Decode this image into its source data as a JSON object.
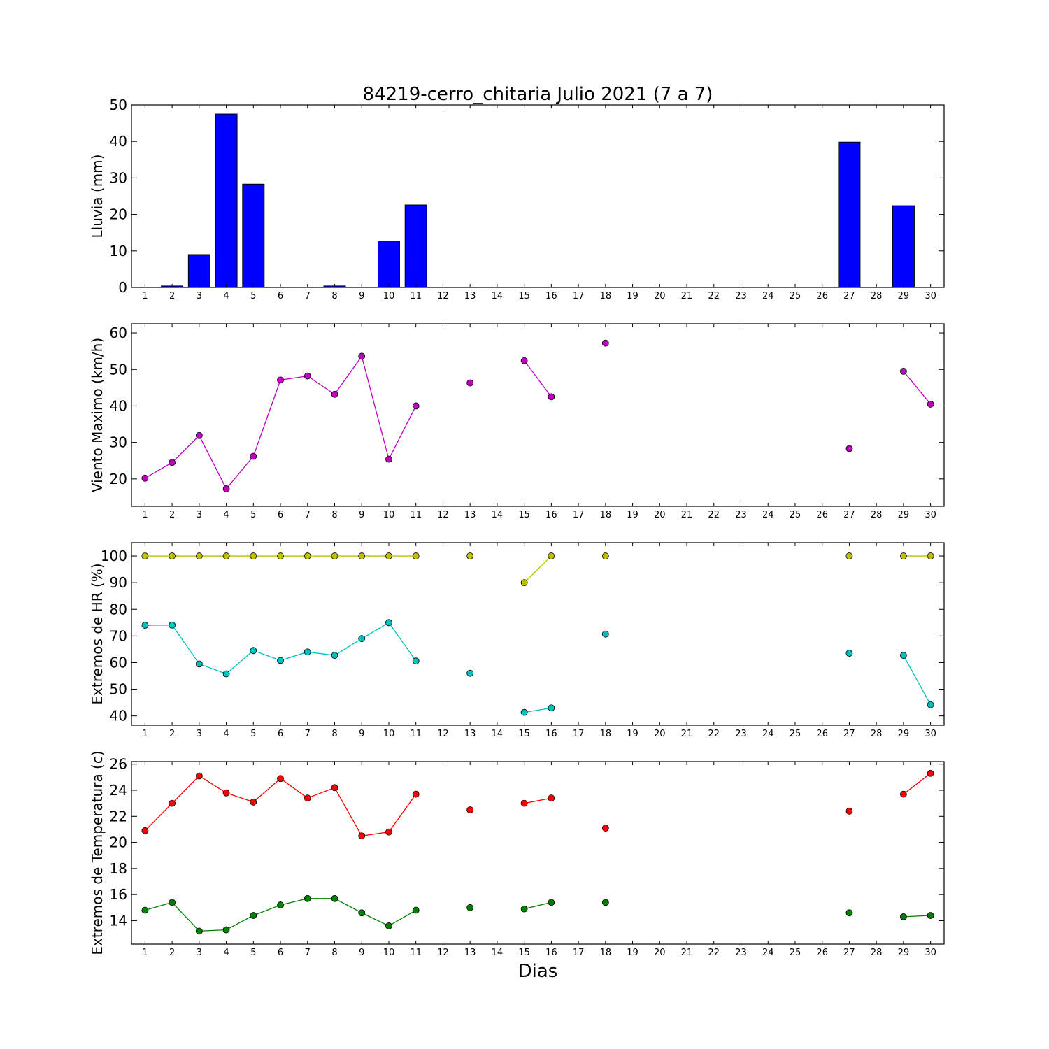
{
  "title": "84219-cerro_chitaria Julio 2021  (7 a 7)",
  "xlabel": "Dias",
  "chart_data": [
    {
      "type": "bar",
      "ylabel": "Lluvia (mm)",
      "ylim": [
        0,
        50
      ],
      "yticks": [
        0,
        10,
        20,
        30,
        40,
        50
      ],
      "xticks": [
        1,
        2,
        3,
        4,
        5,
        6,
        7,
        8,
        9,
        10,
        11,
        12,
        13,
        14,
        15,
        16,
        17,
        18,
        19,
        20,
        21,
        22,
        23,
        24,
        25,
        26,
        27,
        28,
        29,
        30
      ],
      "xlim": [
        0.5,
        30.5
      ],
      "color": "#0000ff",
      "x": [
        1,
        2,
        3,
        4,
        5,
        6,
        7,
        8,
        9,
        10,
        11,
        12,
        13,
        14,
        15,
        16,
        17,
        18,
        19,
        20,
        21,
        22,
        23,
        24,
        25,
        26,
        27,
        28,
        29,
        30
      ],
      "values": [
        0,
        0.4,
        9,
        47.5,
        28.3,
        0,
        0,
        0.4,
        0,
        12.7,
        22.6,
        0,
        0,
        0,
        0,
        0,
        0,
        0,
        0,
        0,
        0,
        0,
        0,
        0,
        0,
        0,
        39.8,
        0,
        22.4,
        0
      ]
    },
    {
      "type": "line",
      "ylabel": "Viento Maximo (km/h)",
      "ylim": [
        12.5,
        62.5
      ],
      "yticks": [
        20,
        30,
        40,
        50,
        60
      ],
      "xticks": [
        1,
        2,
        3,
        4,
        5,
        6,
        7,
        8,
        9,
        10,
        11,
        12,
        13,
        14,
        15,
        16,
        17,
        18,
        19,
        20,
        21,
        22,
        23,
        24,
        25,
        26,
        27,
        28,
        29,
        30
      ],
      "xlim": [
        0.5,
        30.5
      ],
      "x": [
        1,
        2,
        3,
        4,
        5,
        6,
        7,
        8,
        9,
        10,
        11,
        12,
        13,
        14,
        15,
        16,
        17,
        18,
        19,
        20,
        21,
        22,
        23,
        24,
        25,
        26,
        27,
        28,
        29,
        30
      ],
      "series": [
        {
          "color": "#bf00bf",
          "values": [
            20.2,
            24.5,
            31.9,
            17.3,
            26.2,
            47.1,
            48.2,
            43.2,
            53.6,
            25.4,
            40.0,
            null,
            46.3,
            null,
            52.4,
            42.5,
            null,
            57.2,
            null,
            null,
            null,
            null,
            null,
            null,
            null,
            null,
            28.3,
            null,
            49.5,
            40.5
          ]
        }
      ]
    },
    {
      "type": "line",
      "ylabel": "Extremos de HR (%)",
      "ylim": [
        36.5,
        105
      ],
      "yticks": [
        40,
        50,
        60,
        70,
        80,
        90,
        100
      ],
      "xticks": [
        1,
        2,
        3,
        4,
        5,
        6,
        7,
        8,
        9,
        10,
        11,
        12,
        13,
        14,
        15,
        16,
        17,
        18,
        19,
        20,
        21,
        22,
        23,
        24,
        25,
        26,
        27,
        28,
        29,
        30
      ],
      "xlim": [
        0.5,
        30.5
      ],
      "x": [
        1,
        2,
        3,
        4,
        5,
        6,
        7,
        8,
        9,
        10,
        11,
        12,
        13,
        14,
        15,
        16,
        17,
        18,
        19,
        20,
        21,
        22,
        23,
        24,
        25,
        26,
        27,
        28,
        29,
        30
      ],
      "series": [
        {
          "color": "#bfbf00",
          "values": [
            100,
            100,
            100,
            100,
            100,
            100,
            100,
            100,
            100,
            100,
            100,
            null,
            100,
            null,
            90,
            100,
            null,
            100,
            null,
            null,
            null,
            null,
            null,
            null,
            null,
            null,
            100,
            null,
            100,
            100
          ]
        },
        {
          "color": "#00bfbf",
          "values": [
            74,
            74.1,
            59.5,
            55.8,
            64.5,
            60.8,
            64,
            62.7,
            69,
            75,
            60.6,
            null,
            56,
            null,
            41.3,
            43,
            null,
            70.7,
            null,
            null,
            null,
            null,
            null,
            null,
            null,
            null,
            63.5,
            null,
            62.7,
            44.2
          ]
        }
      ]
    },
    {
      "type": "line",
      "ylabel": "Extremos de Temperatura (c)",
      "ylim": [
        12.2,
        26.2
      ],
      "yticks": [
        14,
        16,
        18,
        20,
        22,
        24,
        26
      ],
      "xticks": [
        1,
        2,
        3,
        4,
        5,
        6,
        7,
        8,
        9,
        10,
        11,
        12,
        13,
        14,
        15,
        16,
        17,
        18,
        19,
        20,
        21,
        22,
        23,
        24,
        25,
        26,
        27,
        28,
        29,
        30
      ],
      "xlim": [
        0.5,
        30.5
      ],
      "x": [
        1,
        2,
        3,
        4,
        5,
        6,
        7,
        8,
        9,
        10,
        11,
        12,
        13,
        14,
        15,
        16,
        17,
        18,
        19,
        20,
        21,
        22,
        23,
        24,
        25,
        26,
        27,
        28,
        29,
        30
      ],
      "series": [
        {
          "color": "#ff0000",
          "values": [
            20.9,
            23.0,
            25.1,
            23.8,
            23.1,
            24.9,
            23.4,
            24.2,
            20.5,
            20.8,
            23.7,
            null,
            22.5,
            null,
            23.0,
            23.4,
            null,
            21.1,
            null,
            null,
            null,
            null,
            null,
            null,
            null,
            null,
            22.4,
            null,
            23.7,
            25.3
          ]
        },
        {
          "color": "#008000",
          "values": [
            14.8,
            15.4,
            13.2,
            13.3,
            14.4,
            15.2,
            15.7,
            15.7,
            14.6,
            13.6,
            14.8,
            null,
            15.0,
            null,
            14.9,
            15.4,
            null,
            15.4,
            null,
            null,
            null,
            null,
            null,
            null,
            null,
            null,
            14.6,
            null,
            14.3,
            14.4
          ]
        }
      ]
    }
  ]
}
